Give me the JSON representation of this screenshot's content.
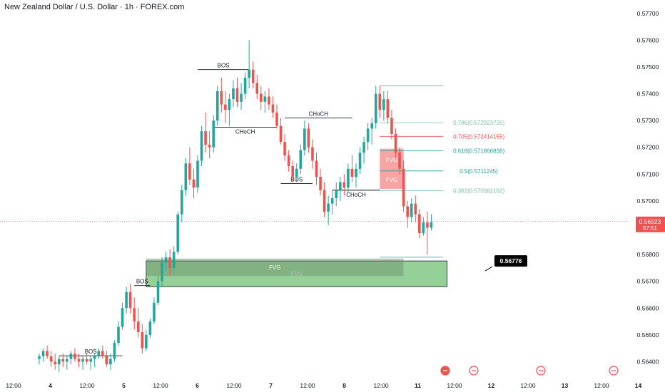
{
  "chart_data": {
    "type": "candlestick",
    "title": "New Zealand Dollar / U.S. Dollar · 1h · FOREX.com",
    "ylim": [
      0.5634,
      0.5775
    ],
    "y_ticks": [
      "0.57700",
      "0.57600",
      "0.57500",
      "0.57400",
      "0.57300",
      "0.57200",
      "0.57100",
      "0.57000",
      "0.56800",
      "0.56700",
      "0.56600",
      "0.56500",
      "0.56400"
    ],
    "x_ticks": [
      "12:00",
      "4",
      "12:00",
      "5",
      "12:00",
      "6",
      "12:00",
      "7",
      "12:00",
      "8",
      "12:00",
      "11",
      "12:00",
      "12",
      "12:00",
      "13",
      "12:00",
      "14"
    ],
    "x_range": [
      0,
      123
    ],
    "current_price": {
      "value": 0.56923,
      "label": "0.56923",
      "countdown": "57:51"
    },
    "callout": {
      "value": 0.56776,
      "label": "0.56776"
    },
    "colors": {
      "up": "#26a69a",
      "down": "#ef5350",
      "fvg_demand": "#7cc47f",
      "fvg_supply": "#f59a9a"
    },
    "candles": [
      [
        0.5641,
        0.5643,
        0.5639,
        0.5642
      ],
      [
        0.5642,
        0.5645,
        0.564,
        0.5644
      ],
      [
        0.5644,
        0.5646,
        0.5641,
        0.5642
      ],
      [
        0.5642,
        0.5644,
        0.5638,
        0.564
      ],
      [
        0.564,
        0.5643,
        0.5637,
        0.5639
      ],
      [
        0.5639,
        0.5642,
        0.5636,
        0.5641
      ],
      [
        0.5641,
        0.5643,
        0.5638,
        0.564
      ],
      [
        0.564,
        0.5642,
        0.5637,
        0.5641
      ],
      [
        0.5641,
        0.5644,
        0.5639,
        0.5643
      ],
      [
        0.5643,
        0.5645,
        0.564,
        0.5641
      ],
      [
        0.5641,
        0.5643,
        0.5638,
        0.564
      ],
      [
        0.564,
        0.5642,
        0.5637,
        0.5641
      ],
      [
        0.5641,
        0.5643,
        0.5639,
        0.564
      ],
      [
        0.564,
        0.5642,
        0.5637,
        0.5641
      ],
      [
        0.5641,
        0.5643,
        0.5638,
        0.5642
      ],
      [
        0.5642,
        0.5645,
        0.5641,
        0.5644
      ],
      [
        0.5644,
        0.5646,
        0.5641,
        0.5642
      ],
      [
        0.5642,
        0.5644,
        0.5638,
        0.5639
      ],
      [
        0.5639,
        0.5643,
        0.5637,
        0.5641
      ],
      [
        0.5641,
        0.5648,
        0.564,
        0.5647
      ],
      [
        0.5647,
        0.5655,
        0.5646,
        0.5653
      ],
      [
        0.5653,
        0.5662,
        0.5652,
        0.566
      ],
      [
        0.566,
        0.5668,
        0.5658,
        0.5666
      ],
      [
        0.5666,
        0.5669,
        0.5658,
        0.566
      ],
      [
        0.566,
        0.5664,
        0.5652,
        0.5655
      ],
      [
        0.5655,
        0.566,
        0.5649,
        0.5651
      ],
      [
        0.5651,
        0.5654,
        0.5643,
        0.5645
      ],
      [
        0.5645,
        0.5652,
        0.5644,
        0.565
      ],
      [
        0.565,
        0.5656,
        0.5649,
        0.5655
      ],
      [
        0.5655,
        0.5664,
        0.5654,
        0.5662
      ],
      [
        0.5662,
        0.5672,
        0.5661,
        0.567
      ],
      [
        0.567,
        0.5679,
        0.5668,
        0.5677
      ],
      [
        0.5677,
        0.5681,
        0.5674,
        0.5679
      ],
      [
        0.5679,
        0.5682,
        0.5672,
        0.5675
      ],
      [
        0.5675,
        0.5683,
        0.5674,
        0.5681
      ],
      [
        0.5681,
        0.5696,
        0.568,
        0.5695
      ],
      [
        0.5695,
        0.5706,
        0.5692,
        0.5704
      ],
      [
        0.5704,
        0.5716,
        0.5702,
        0.5714
      ],
      [
        0.5714,
        0.572,
        0.5706,
        0.5708
      ],
      [
        0.5708,
        0.5712,
        0.5701,
        0.5705
      ],
      [
        0.5705,
        0.5717,
        0.5703,
        0.5715
      ],
      [
        0.5715,
        0.5728,
        0.5713,
        0.5726
      ],
      [
        0.5726,
        0.5733,
        0.5718,
        0.5721
      ],
      [
        0.5721,
        0.5726,
        0.5716,
        0.572
      ],
      [
        0.572,
        0.5732,
        0.5718,
        0.573
      ],
      [
        0.573,
        0.5743,
        0.5728,
        0.5741
      ],
      [
        0.5741,
        0.5746,
        0.5733,
        0.5736
      ],
      [
        0.5736,
        0.5741,
        0.5729,
        0.5734
      ],
      [
        0.5734,
        0.574,
        0.5728,
        0.5738
      ],
      [
        0.5738,
        0.5745,
        0.5735,
        0.5742
      ],
      [
        0.5742,
        0.5746,
        0.5735,
        0.5737
      ],
      [
        0.5737,
        0.5744,
        0.5734,
        0.574
      ],
      [
        0.574,
        0.5748,
        0.5738,
        0.5746
      ],
      [
        0.5746,
        0.576,
        0.5742,
        0.5749
      ],
      [
        0.5749,
        0.5752,
        0.5742,
        0.5744
      ],
      [
        0.5744,
        0.5747,
        0.5738,
        0.574
      ],
      [
        0.574,
        0.5743,
        0.5734,
        0.5737
      ],
      [
        0.5737,
        0.5741,
        0.5733,
        0.5739
      ],
      [
        0.5739,
        0.5742,
        0.5734,
        0.5736
      ],
      [
        0.5736,
        0.5739,
        0.5731,
        0.5733
      ],
      [
        0.5733,
        0.5736,
        0.5727,
        0.5728
      ],
      [
        0.5728,
        0.5731,
        0.5721,
        0.5722
      ],
      [
        0.5722,
        0.5725,
        0.5715,
        0.5717
      ],
      [
        0.5717,
        0.5719,
        0.5711,
        0.5713
      ],
      [
        0.5713,
        0.5715,
        0.5707,
        0.5709
      ],
      [
        0.5709,
        0.5714,
        0.5707,
        0.5712
      ],
      [
        0.5712,
        0.5721,
        0.571,
        0.5719
      ],
      [
        0.5719,
        0.573,
        0.5717,
        0.5727
      ],
      [
        0.5727,
        0.5729,
        0.5718,
        0.572
      ],
      [
        0.572,
        0.5723,
        0.5712,
        0.5715
      ],
      [
        0.5715,
        0.5718,
        0.5706,
        0.5709
      ],
      [
        0.5709,
        0.5712,
        0.5702,
        0.5704
      ],
      [
        0.5704,
        0.5707,
        0.5694,
        0.5696
      ],
      [
        0.5696,
        0.5702,
        0.5691,
        0.5699
      ],
      [
        0.5699,
        0.5704,
        0.5695,
        0.5701
      ],
      [
        0.5701,
        0.5707,
        0.5698,
        0.5704
      ],
      [
        0.5704,
        0.5709,
        0.57,
        0.5707
      ],
      [
        0.5707,
        0.571,
        0.5702,
        0.5705
      ],
      [
        0.5705,
        0.5714,
        0.5703,
        0.5712
      ],
      [
        0.5712,
        0.5717,
        0.5707,
        0.5709
      ],
      [
        0.5709,
        0.5714,
        0.5705,
        0.5712
      ],
      [
        0.5712,
        0.572,
        0.571,
        0.5718
      ],
      [
        0.5718,
        0.5724,
        0.5714,
        0.5722
      ],
      [
        0.5722,
        0.5729,
        0.5719,
        0.5727
      ],
      [
        0.5727,
        0.5731,
        0.5721,
        0.5729
      ],
      [
        0.5729,
        0.5743,
        0.5727,
        0.574
      ],
      [
        0.574,
        0.5743,
        0.5731,
        0.5734
      ],
      [
        0.5734,
        0.5741,
        0.573,
        0.5738
      ],
      [
        0.5738,
        0.5741,
        0.5729,
        0.5731
      ],
      [
        0.5731,
        0.5734,
        0.5723,
        0.5725
      ],
      [
        0.5725,
        0.5727,
        0.5716,
        0.5718
      ],
      [
        0.5718,
        0.572,
        0.571,
        0.5712
      ],
      [
        0.5712,
        0.5715,
        0.5696,
        0.5698
      ],
      [
        0.5698,
        0.57,
        0.569,
        0.5694
      ],
      [
        0.5694,
        0.5701,
        0.5692,
        0.5699
      ],
      [
        0.5699,
        0.5702,
        0.5692,
        0.5695
      ],
      [
        0.5695,
        0.5697,
        0.5686,
        0.5688
      ],
      [
        0.5688,
        0.5694,
        0.5687,
        0.5692
      ],
      [
        0.5692,
        0.5696,
        0.568,
        0.569
      ],
      [
        0.569,
        0.5695,
        0.5689,
        0.5692
      ]
    ],
    "fvg_zones": [
      {
        "label": "FVG",
        "kind": "demand",
        "y1": 0.5668,
        "y2": 0.56776,
        "x_from": 27,
        "x_to": 103
      },
      {
        "label": "FVG",
        "kind": "demand-mitigated",
        "y1": 0.5672,
        "y2": 0.56785,
        "x_from": 27,
        "x_to": 92
      },
      {
        "label": "FVG",
        "kind": "supply",
        "y1": 0.5711,
        "y2": 0.57195,
        "x_from": 86,
        "x_to": 92
      },
      {
        "label": "FVG",
        "kind": "supply",
        "y1": 0.57045,
        "y2": 0.57115,
        "x_from": 86,
        "x_to": 92
      }
    ],
    "structure_lines": [
      {
        "label": "BOS",
        "y": 0.56422,
        "x_from": 5,
        "x_to": 21
      },
      {
        "label": "BOS",
        "y": 0.56684,
        "x_from": 24,
        "x_to": 28
      },
      {
        "label": "BOS",
        "y": 0.5749,
        "x_from": 40,
        "x_to": 53
      },
      {
        "label": "CHoCH",
        "y": 0.57275,
        "x_from": 44,
        "x_to": 60
      },
      {
        "label": "CHoCH",
        "y": 0.5731,
        "x_from": 62,
        "x_to": 79
      },
      {
        "label": "BOS",
        "y": 0.57065,
        "x_from": 61,
        "x_to": 69
      },
      {
        "label": "CHoCH",
        "y": 0.5704,
        "x_from": 74,
        "x_to": 86
      }
    ],
    "fib_levels": [
      {
        "ratio": "1",
        "value": 0.5743,
        "label": "",
        "color": "#26a69a"
      },
      {
        "ratio": "0.786",
        "value": 0.57292,
        "label": "0.786(0.572923726)",
        "color": "#7fbfa4"
      },
      {
        "ratio": "0.705",
        "value": 0.57241,
        "label": "0.705(0.572414155)",
        "color": "#ef5350"
      },
      {
        "ratio": "0.618",
        "value": 0.57187,
        "label": "0.618(0.571866838)",
        "color": "#26a69a"
      },
      {
        "ratio": "0.5",
        "value": 0.57112,
        "label": "0.5(0.5711245)",
        "color": "#26a69a"
      },
      {
        "ratio": "0.382",
        "value": 0.57038,
        "label": "0.382(0.570382162)",
        "color": "#7fbfa4"
      },
      {
        "ratio": "0",
        "value": 0.5679,
        "label": "",
        "color": "#26a69a"
      }
    ],
    "event_icons": [
      {
        "name": "flag-icon",
        "x": 94
      },
      {
        "name": "flag-icon",
        "x": 100.5
      },
      {
        "name": "flag-icon",
        "x": 113.5
      },
      {
        "name": "flag-icon",
        "x": 126.5
      }
    ]
  }
}
